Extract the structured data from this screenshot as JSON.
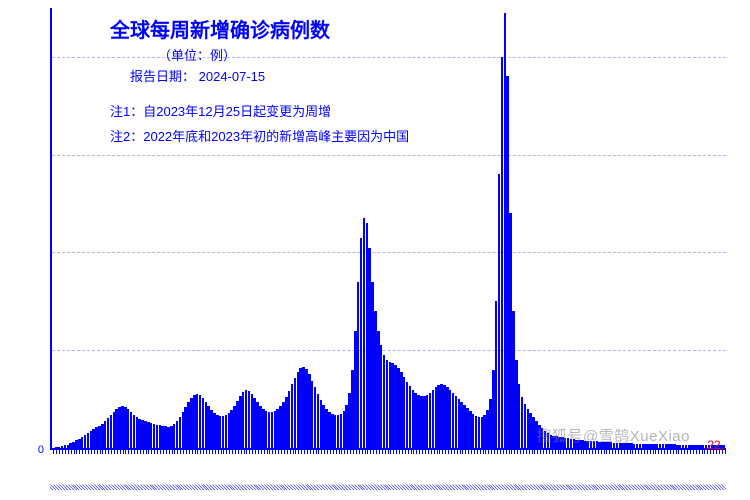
{
  "chart": {
    "type": "bar",
    "title": "全球每周新增确诊病例数",
    "subtitle": "（单位：例）",
    "report_label": "报告日期：",
    "report_date": "2024-07-15",
    "notes": [
      "注1：自2023年12月25日起变更为周增",
      "注2：2022年底和2023年初的新增高峰主要因为中国"
    ],
    "title_fontsize": 20,
    "label_fontsize": 13,
    "tick_fontsize": 11,
    "bar_color": "#0000ff",
    "axis_color": "#0000ff",
    "grid_color": "#b0b0ff",
    "background_color": "#ffffff",
    "ylim": [
      0,
      45000000
    ],
    "y_ticks": [
      0,
      10000000,
      20000000,
      30000000,
      40000000
    ],
    "y_tick_labels": [
      "0",
      "",
      "",
      "",
      ""
    ],
    "grid_on": true,
    "end_value_label": "22,",
    "end_value_color": "#ff0000",
    "watermark": "搜狐号@雪鹄XueXiao",
    "watermark_color": "rgba(120,120,120,0.55)",
    "values": [
      50000,
      80000,
      120000,
      180000,
      260000,
      350000,
      480000,
      620000,
      780000,
      920000,
      1100000,
      1300000,
      1500000,
      1700000,
      1900000,
      2100000,
      2300000,
      2500000,
      2800000,
      3100000,
      3400000,
      3700000,
      4000000,
      4200000,
      4300000,
      4200000,
      4000000,
      3700000,
      3400000,
      3200000,
      3000000,
      2900000,
      2800000,
      2700000,
      2600000,
      2500000,
      2400000,
      2350000,
      2300000,
      2250000,
      2200000,
      2300000,
      2500000,
      2800000,
      3200000,
      3700000,
      4200000,
      4700000,
      5100000,
      5400000,
      5500000,
      5400000,
      5100000,
      4700000,
      4300000,
      3900000,
      3600000,
      3400000,
      3300000,
      3300000,
      3400000,
      3600000,
      3900000,
      4300000,
      4800000,
      5300000,
      5700000,
      5900000,
      5800000,
      5500000,
      5100000,
      4700000,
      4300000,
      4000000,
      3800000,
      3700000,
      3700000,
      3800000,
      4000000,
      4300000,
      4700000,
      5200000,
      5800000,
      6500000,
      7200000,
      7800000,
      8200000,
      8300000,
      8100000,
      7600000,
      6900000,
      6200000,
      5500000,
      4900000,
      4400000,
      4000000,
      3700000,
      3500000,
      3400000,
      3400000,
      3500000,
      3800000,
      4400000,
      5600000,
      8000000,
      12000000,
      17000000,
      21500000,
      23500000,
      23000000,
      20500000,
      17000000,
      14000000,
      12000000,
      10500000,
      9500000,
      9000000,
      8800000,
      8700000,
      8500000,
      8200000,
      7800000,
      7300000,
      6800000,
      6300000,
      5900000,
      5600000,
      5400000,
      5300000,
      5300000,
      5400000,
      5600000,
      5900000,
      6200000,
      6400000,
      6500000,
      6400000,
      6200000,
      5900000,
      5600000,
      5300000,
      5000000,
      4700000,
      4400000,
      4100000,
      3800000,
      3500000,
      3300000,
      3200000,
      3200000,
      3400000,
      3900000,
      5000000,
      8000000,
      15000000,
      28000000,
      40000000,
      44500000,
      38000000,
      24000000,
      14000000,
      9000000,
      6500000,
      5200000,
      4500000,
      4000000,
      3600000,
      3200000,
      2800000,
      2400000,
      2000000,
      1700000,
      1500000,
      1350000,
      1250000,
      1200000,
      1150000,
      1100000,
      1050000,
      1000000,
      950000,
      900000,
      850000,
      800000,
      780000,
      760000,
      740000,
      720000,
      700000,
      680000,
      660000,
      640000,
      620000,
      600000,
      580000,
      560000,
      540000,
      520000,
      500000,
      490000,
      480000,
      470000,
      460000,
      450000,
      440000,
      430000,
      420000,
      410000,
      400000,
      395000,
      390000,
      385000,
      380000,
      375000,
      370000,
      365000,
      360000,
      355000,
      350000,
      345000,
      340000,
      335000,
      330000,
      325000,
      320000,
      315000,
      310000,
      305000,
      300000,
      298000,
      296000,
      294000,
      292000,
      290000
    ],
    "bar_width": 0.8
  }
}
